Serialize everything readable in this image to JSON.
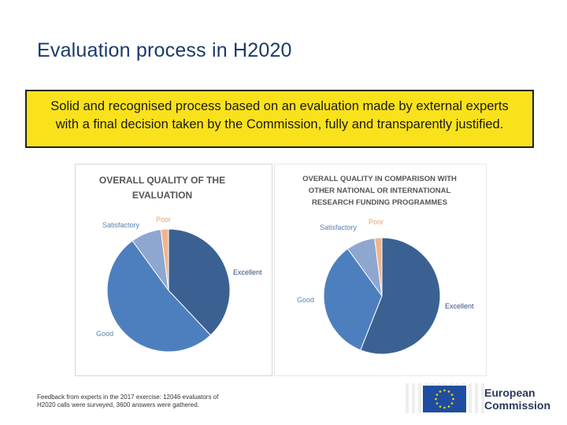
{
  "slide": {
    "title": "Evaluation process in H2020",
    "banner_line1": "Solid and recognised process based on an evaluation made by external experts",
    "banner_line2": "with a final decision taken by the Commission, fully and transparently justified.",
    "footnote_line1": "Feedback from experts in the 2017 exercise: 12046 evaluators of",
    "footnote_line2": "H2020 calls were surveyed, 3600 answers were gathered."
  },
  "logo": {
    "line1": "European",
    "line2": "Commission",
    "flag_color": "#1f4ea1",
    "star_color": "#ffd200"
  },
  "chart_data": [
    {
      "type": "pie",
      "title_lines": [
        "OVERALL QUALITY OF THE",
        "EVALUATION"
      ],
      "categories": [
        "Excellent",
        "Good",
        "Satisfactory",
        "Poor"
      ],
      "values": [
        38,
        52,
        8,
        2
      ],
      "colors": [
        "#3b6193",
        "#4d7fbf",
        "#8ea7d1",
        "#f2b48a"
      ],
      "legend": "labels-around"
    },
    {
      "type": "pie",
      "title_lines": [
        "OVERALL QUALITY IN COMPARISON WITH",
        "OTHER NATIONAL OR INTERNATIONAL",
        "RESEARCH FUNDING PROGRAMMES"
      ],
      "categories": [
        "Excellent",
        "Good",
        "Satisfactory",
        "Poor"
      ],
      "values": [
        56,
        34,
        8,
        2
      ],
      "colors": [
        "#3b6193",
        "#4d7fbf",
        "#8ea7d1",
        "#f2b48a"
      ],
      "legend": "labels-around"
    }
  ]
}
